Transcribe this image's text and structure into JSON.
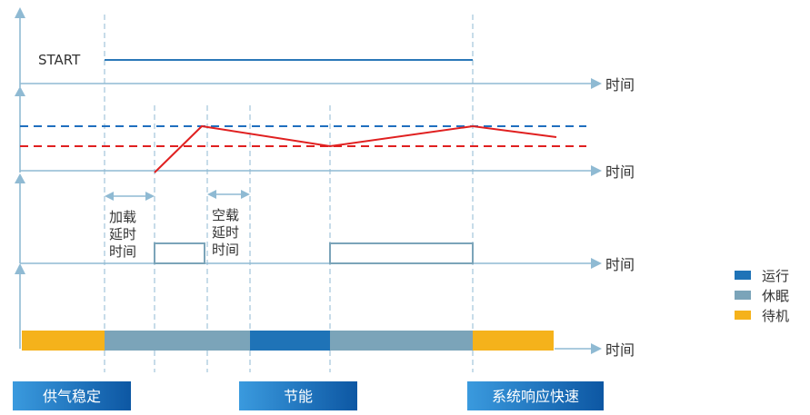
{
  "start_label": "START",
  "time_label": "时间",
  "delay_load": [
    "加载",
    "延时",
    "时间"
  ],
  "delay_unload": [
    "空载",
    "延时",
    "时间"
  ],
  "legend": [
    {
      "label": "运行",
      "color": "#1f73b7"
    },
    {
      "label": "休眠",
      "color": "#7ba4b9"
    },
    {
      "label": "待机",
      "color": "#f5b21b"
    }
  ],
  "tags": [
    "供气稳定",
    "节能",
    "系统响应快速"
  ],
  "colors": {
    "axis": "#8fbad3",
    "guide": "#8fbad3",
    "start_line": "#2a78b8",
    "pressure": "#e02020",
    "upper_limit": "#1f6fbf",
    "lower_limit": "#e02020",
    "run": "#1f73b7",
    "sleep": "#7ba4b9",
    "standby": "#f5b21b",
    "tag_from": "#2f8fd6",
    "tag_to": "#0d57a3"
  }
}
